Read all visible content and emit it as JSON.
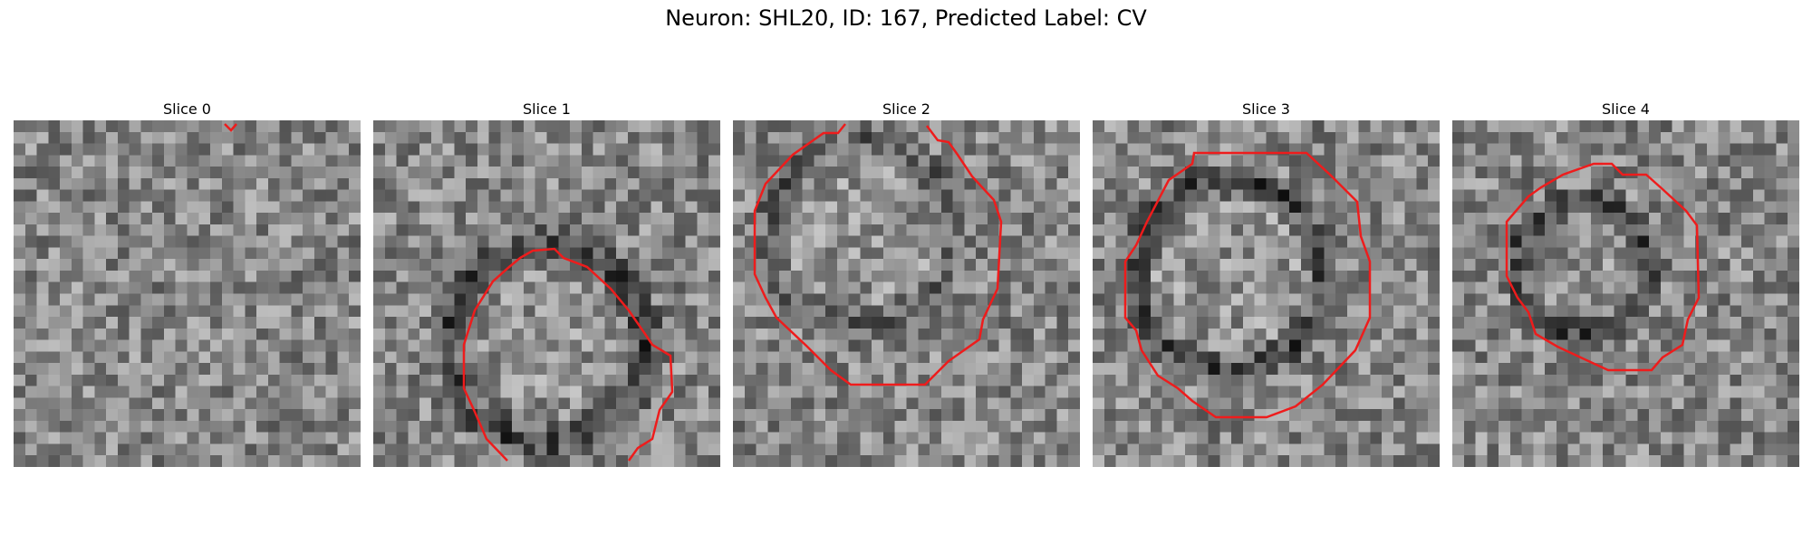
{
  "figure": {
    "title": "Neuron: SHL20, ID: 167, Predicted Label: CV"
  },
  "contour_color": "#ee1c1c",
  "panels": [
    {
      "title": "Slice 0",
      "tile": "grayscale-microscopy-patch",
      "pattern": "noise"
    },
    {
      "title": "Slice 1",
      "tile": "grayscale-microscopy-patch",
      "pattern": "dark-ring-low"
    },
    {
      "title": "Slice 2",
      "tile": "grayscale-microscopy-patch",
      "pattern": "dark-ring-top"
    },
    {
      "title": "Slice 3",
      "tile": "grayscale-microscopy-patch",
      "pattern": "dark-ring-center"
    },
    {
      "title": "Slice 4",
      "tile": "grayscale-microscopy-patch",
      "pattern": "dark-ring-small"
    }
  ]
}
